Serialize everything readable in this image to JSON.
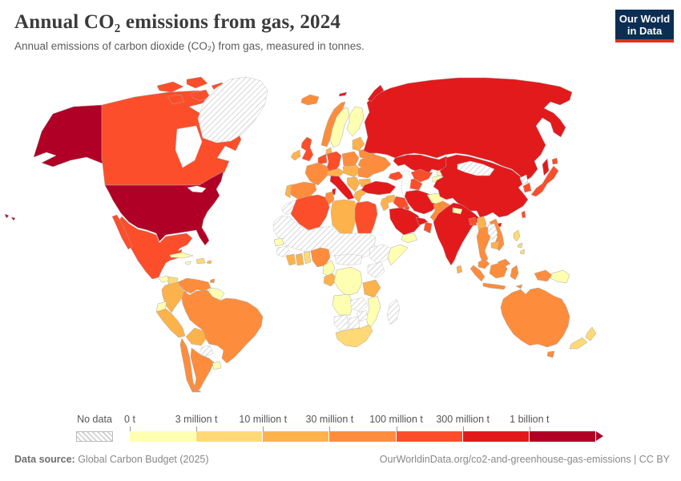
{
  "header": {
    "title": "Annual CO₂ emissions from gas, 2024",
    "subtitle": "Annual emissions of carbon dioxide (CO₂) from gas, measured in tonnes."
  },
  "logo": {
    "line1": "Our World",
    "line2": "in Data",
    "bg_color": "#0d2e54",
    "accent_color": "#e0301f"
  },
  "legend": {
    "no_data_label": "No data",
    "tick_labels": [
      "0 t",
      "3 million t",
      "10 million t",
      "30 million t",
      "100 million t",
      "300 million t",
      "1 billion t"
    ],
    "colors": [
      "#ffffb2",
      "#fed976",
      "#feb24c",
      "#fd8d3c",
      "#fc4e2a",
      "#e31a1c",
      "#b10026"
    ]
  },
  "footer": {
    "source_label": "Data source:",
    "source_text": " Global Carbon Budget (2025)",
    "credit": "OurWorldinData.org/co2-and-greenhouse-gas-emissions | CC BY"
  },
  "chart_data": {
    "type": "choropleth",
    "title": "Annual CO₂ emissions from gas, 2024",
    "unit": "tonnes",
    "year": "2024",
    "legend_thresholds": [
      "0 t",
      "3 million t",
      "10 million t",
      "30 million t",
      "100 million t",
      "300 million t",
      "1 billion t"
    ],
    "palette": [
      "#ffffb2",
      "#fed976",
      "#feb24c",
      "#fd8d3c",
      "#fc4e2a",
      "#e31a1c",
      "#b10026"
    ],
    "bucket_ranges": {
      "b0": "0 - 3 million t",
      "b1": "3 - 10 million t",
      "b2": "10 - 30 million t",
      "b3": "30 - 100 million t",
      "b4": "100 - 300 million t",
      "b5": "300 million - 1 billion t",
      "b6": "1 billion t and over",
      "nd": "No data"
    }
  },
  "map": {
    "countries": {
      "united-states": "b6",
      "canada": "b4",
      "greenland": "nd",
      "mexico": "b4",
      "guatemala-region": "b0",
      "honduras-nicaragua": "b1",
      "costa-rica": "b0",
      "panama": "b3",
      "cuba": "b0",
      "jamaica": "b0",
      "hispaniola": "b1",
      "puerto-rico": "b2",
      "trinidad": "b3",
      "venezuela": "b3",
      "colombia": "b2",
      "guyana-suriname": "b0",
      "ecuador": "b0",
      "peru": "b2",
      "brazil": "b3",
      "bolivia": "b2",
      "paraguay": "nd",
      "chile": "b3",
      "argentina": "b3",
      "uruguay": "b0",
      "iceland": "b3",
      "united-kingdom": "b4",
      "ireland": "b2",
      "norway": "b3",
      "sweden": "b0",
      "finland": "b0",
      "denmark": "b2",
      "baltics": "b2",
      "belarus": "b3",
      "poland": "b3",
      "germany": "b4",
      "benelux": "b4",
      "france": "b3",
      "spain": "b3",
      "portugal": "b2",
      "italy": "b5",
      "switzerland-austria": "b2",
      "central-europe": "b2",
      "romania": "b3",
      "balkans": "b2",
      "bulgaria": "b2",
      "greece": "b2",
      "ukraine": "b3",
      "russia": "b5",
      "kazakhstan": "b5",
      "uzbekistan": "b4",
      "turkmenistan": "b4",
      "kyrgyzstan": "b0",
      "tajikistan": "b0",
      "caucasus": "b4",
      "turkey": "b5",
      "syria": "b2",
      "iraq": "b4",
      "levant": "b2",
      "saudi-arabia": "b5",
      "kuwait": "b4",
      "qatar-uae": "b5",
      "oman": "b4",
      "yemen": "b0",
      "iran": "b5",
      "afghanistan": "b0",
      "pakistan": "b3",
      "india": "b5",
      "nepal": "b0",
      "sri-lanka": "b2",
      "bangladesh": "b4",
      "myanmar": "b2",
      "china": "b5",
      "mongolia": "nd",
      "north-korea": "nd",
      "south-korea": "b4",
      "japan": "b4",
      "taiwan": "b4",
      "vietnam": "b3",
      "laos": "nd",
      "cambodia": "b2",
      "thailand": "b3",
      "malaysia": "b3",
      "philippines": "b1",
      "indonesia": "b3",
      "papua-new-guinea": "b0",
      "australia": "b3",
      "new-zealand": "b1",
      "morocco": "nd",
      "algeria": "b4",
      "tunisia": "b3",
      "libya": "b2",
      "egypt": "b4",
      "sahel": "nd",
      "senegal": "b0",
      "guinea-region": "nd",
      "ivory-coast": "b2",
      "ghana": "b2",
      "togo-benin": "b1",
      "nigeria": "b3",
      "cameroon": "b0",
      "car-south-sudan": "nd",
      "ethiopia": "nd",
      "somalia": "b0",
      "kenya-uganda": "nd",
      "gabon-congo": "b2",
      "dr-congo": "b0",
      "tanzania": "b2",
      "angola": "b0",
      "zambia": "nd",
      "mozambique": "b0",
      "zimbabwe": "nd",
      "madagascar": "nd",
      "namibia": "nd",
      "botswana": "nd",
      "south-africa": "b1"
    }
  }
}
